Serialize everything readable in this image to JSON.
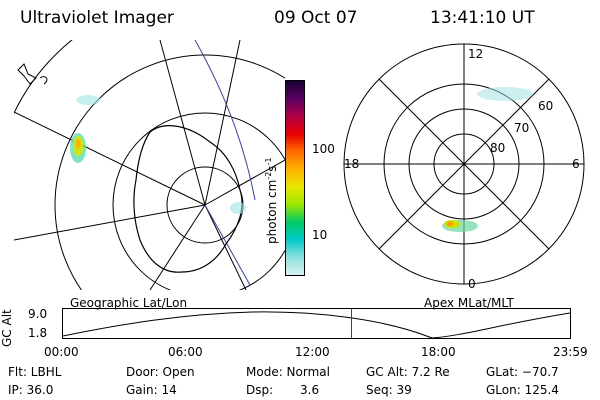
{
  "header": {
    "instrument": "Ultraviolet Imager",
    "date": "09 Oct 07",
    "time": "13:41:10 UT"
  },
  "colorbar": {
    "label": "photon cm",
    "exp1": "-2",
    "mid": "s",
    "exp2": "-1",
    "ticks": [
      "100",
      "10"
    ],
    "colors": [
      "#1a0033",
      "#5a0060",
      "#b00048",
      "#e60000",
      "#ff6a00",
      "#ffb000",
      "#e8e800",
      "#9ee600",
      "#00cc66",
      "#00c8c8",
      "#8fe0e0",
      "#d8f2f2"
    ]
  },
  "polar_plot": {
    "mlt_labels": [
      "12",
      "18",
      "6",
      "0"
    ],
    "mlat_labels": [
      "60",
      "70",
      "80"
    ]
  },
  "panel_labels": {
    "left": "Geographic Lat/Lon",
    "right": "Apex MLat/MLT"
  },
  "altitude_plot": {
    "ylabel": "GC Alt",
    "yticks": [
      "9.0",
      "1.8"
    ],
    "xticks": [
      "00:00",
      "06:00",
      "12:00",
      "18:00",
      "23:59"
    ],
    "current_time_fraction": 0.569
  },
  "info": {
    "filter": "Flt: LBHL",
    "door": "Door: Open",
    "mode": "Mode: Normal",
    "gc_alt": "GC Alt: 7.2 Re",
    "glat": "GLat: −70.7",
    "ip": "IP: 36.0",
    "gain": "Gain: 14",
    "dsp_label": "Dsp:",
    "dsp_value": "3.6",
    "seq": "Seq: 39",
    "glon": "GLon: 125.4"
  }
}
